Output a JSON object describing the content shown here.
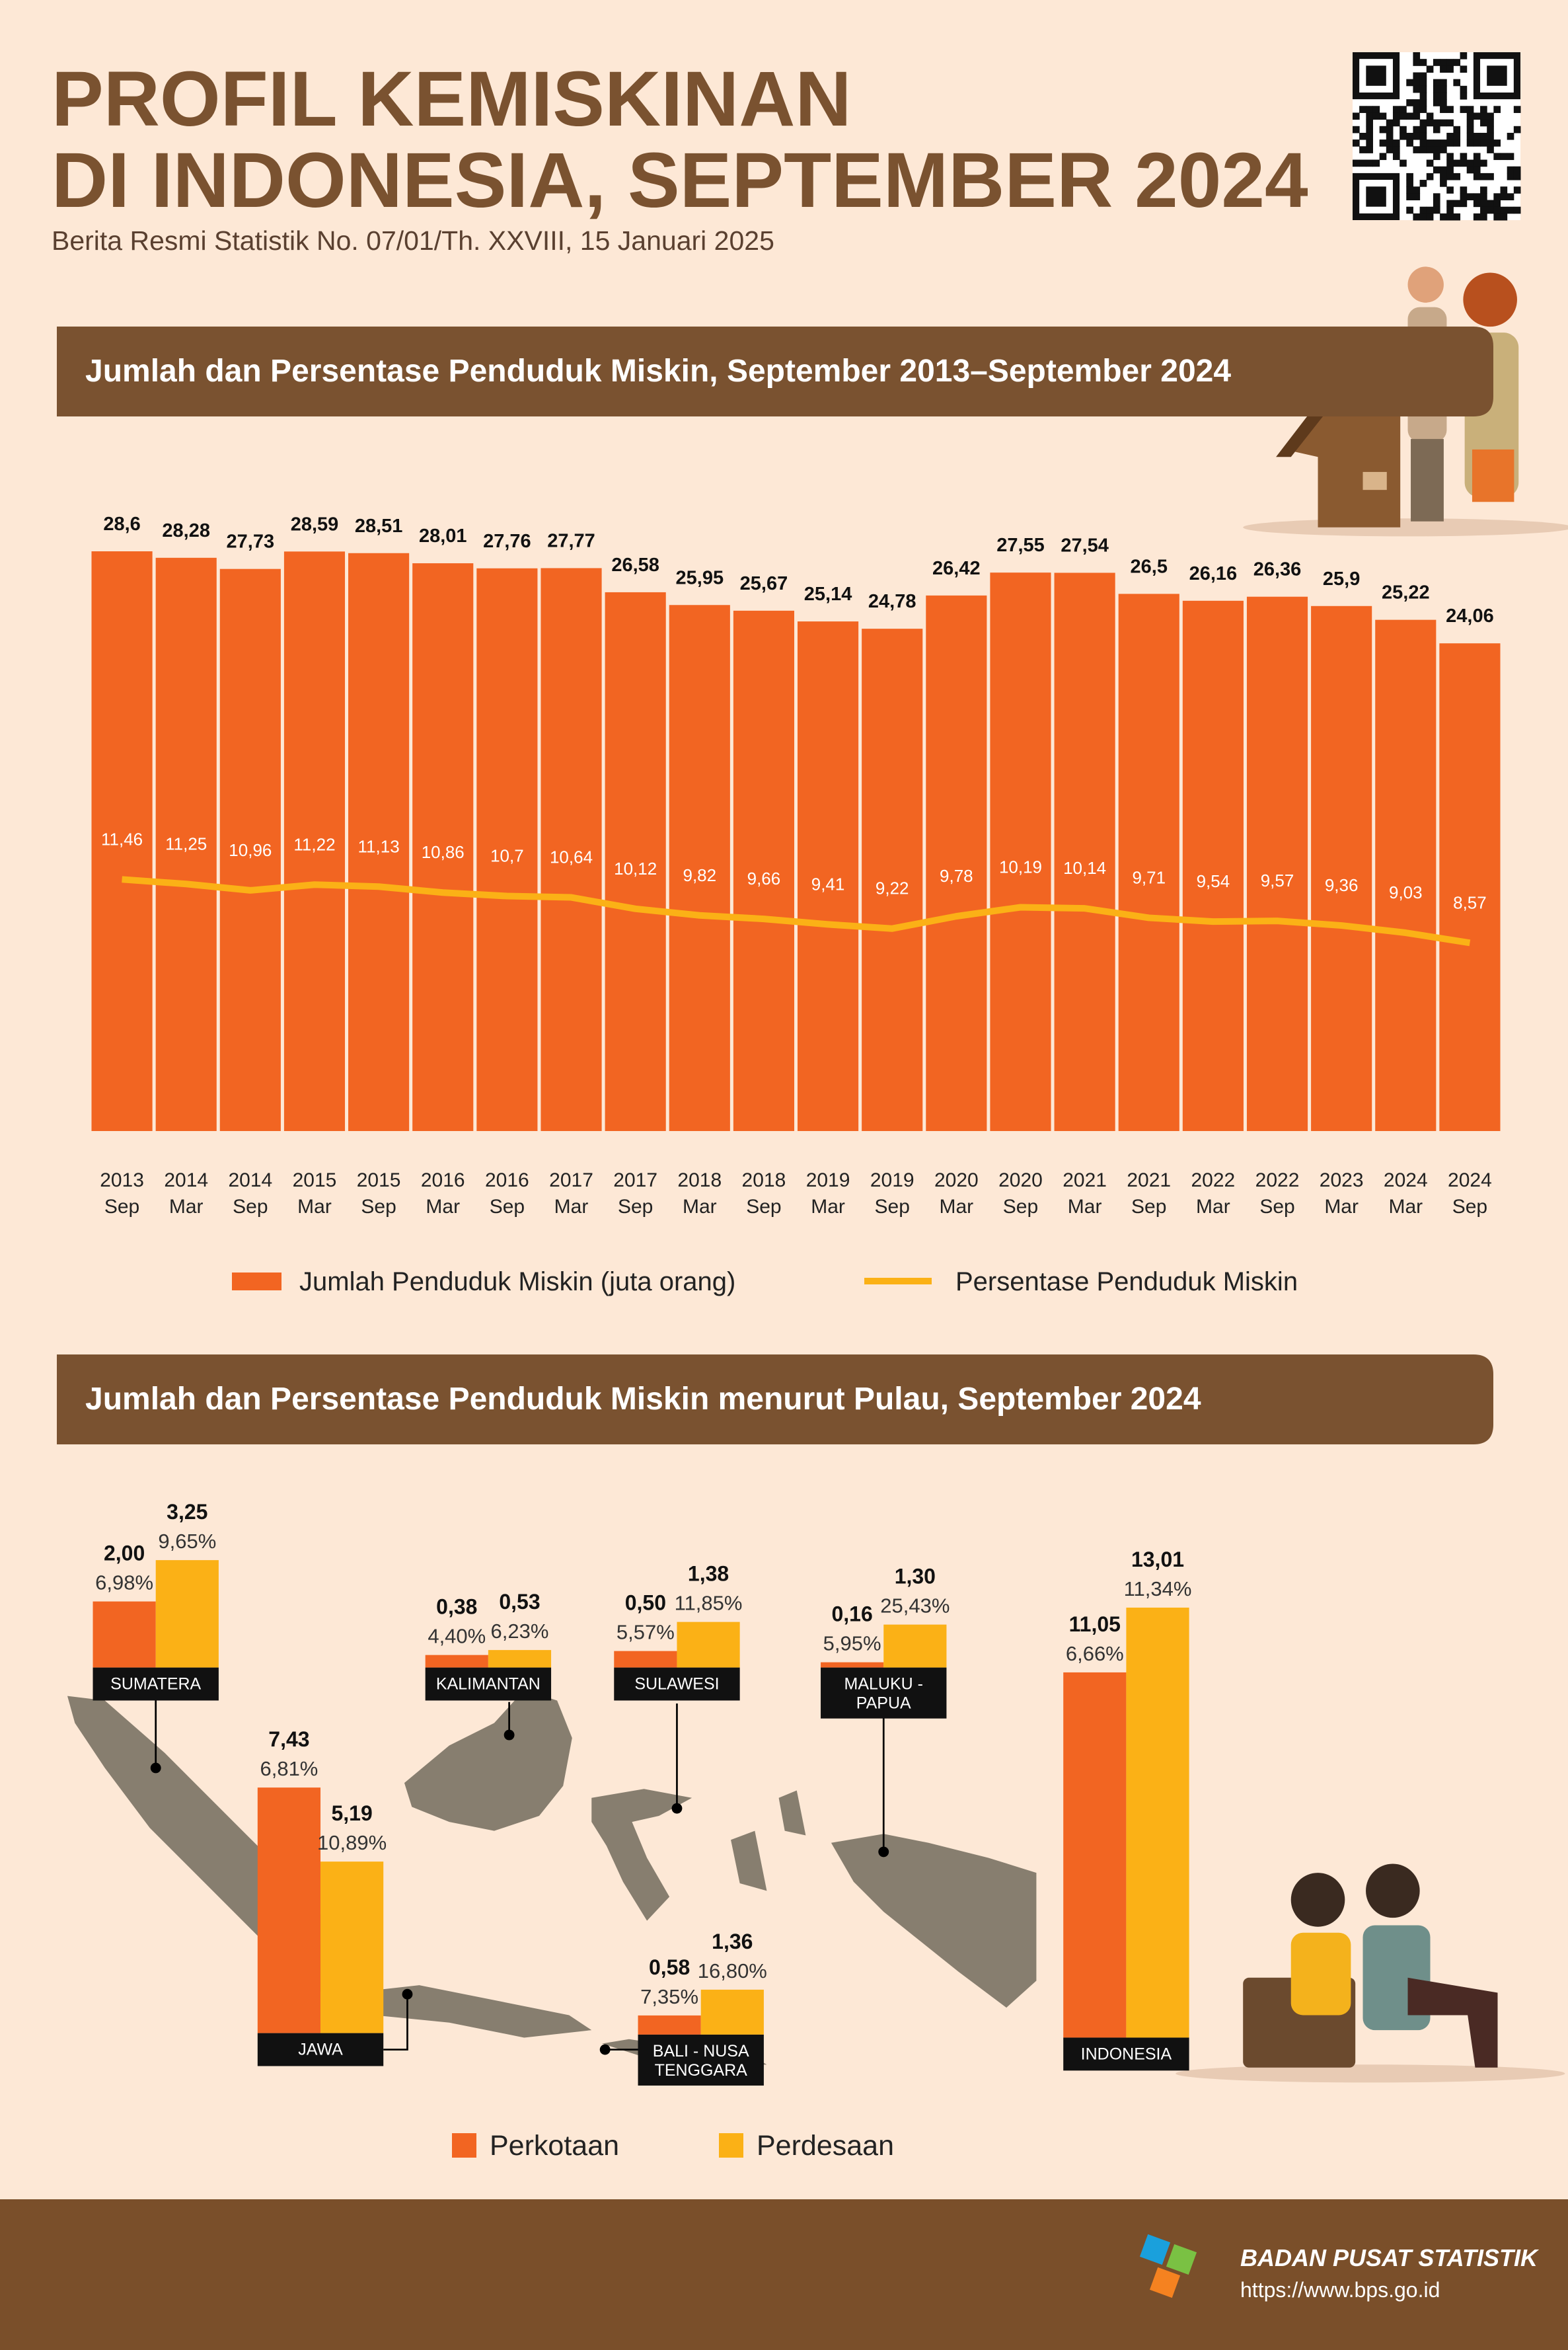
{
  "header": {
    "title_lines": [
      "PROFIL KEMISKINAN",
      "DI INDONESIA, SEPTEMBER 2024"
    ],
    "subtitle": "Berita Resmi Statistik No. 07/01/Th. XXVIII, 15 Januari 2025"
  },
  "chart_data": [
    {
      "type": "bar",
      "title": "Jumlah dan Persentase Penduduk Miskin, September 2013–September 2024",
      "categories": [
        [
          "2013",
          "Sep"
        ],
        [
          "2014",
          "Mar"
        ],
        [
          "2014",
          "Sep"
        ],
        [
          "2015",
          "Mar"
        ],
        [
          "2015",
          "Sep"
        ],
        [
          "2016",
          "Mar"
        ],
        [
          "2016",
          "Sep"
        ],
        [
          "2017",
          "Mar"
        ],
        [
          "2017",
          "Sep"
        ],
        [
          "2018",
          "Mar"
        ],
        [
          "2018",
          "Sep"
        ],
        [
          "2019",
          "Mar"
        ],
        [
          "2019",
          "Sep"
        ],
        [
          "2020",
          "Mar"
        ],
        [
          "2020",
          "Sep"
        ],
        [
          "2021",
          "Mar"
        ],
        [
          "2021",
          "Sep"
        ],
        [
          "2022",
          "Mar"
        ],
        [
          "2022",
          "Sep"
        ],
        [
          "2023",
          "Mar"
        ],
        [
          "2024",
          "Mar"
        ],
        [
          "2024",
          "Sep"
        ]
      ],
      "series": [
        {
          "name": "Jumlah Penduduk Miskin (juta orang)",
          "type": "bar",
          "color": "#f26522",
          "values": [
            28.6,
            28.28,
            27.73,
            28.59,
            28.51,
            28.01,
            27.76,
            27.77,
            26.58,
            25.95,
            25.67,
            25.14,
            24.78,
            26.42,
            27.55,
            27.54,
            26.5,
            26.16,
            26.36,
            25.9,
            25.22,
            24.06
          ],
          "value_labels": [
            "28,6",
            "28,28",
            "27,73",
            "28,59",
            "28,51",
            "28,01",
            "27,76",
            "27,77",
            "26,58",
            "25,95",
            "25,67",
            "25,14",
            "24,78",
            "26,42",
            "27,55",
            "27,54",
            "26,5",
            "26,16",
            "26,36",
            "25,9",
            "25,22",
            "24,06"
          ]
        },
        {
          "name": "Persentase Penduduk Miskin",
          "type": "line",
          "axis": "y2",
          "color": "#fbb116",
          "values": [
            11.46,
            11.25,
            10.96,
            11.22,
            11.13,
            10.86,
            10.7,
            10.64,
            10.12,
            9.82,
            9.66,
            9.41,
            9.22,
            9.78,
            10.19,
            10.14,
            9.71,
            9.54,
            9.57,
            9.36,
            9.03,
            8.57
          ],
          "value_labels": [
            "11,46",
            "11,25",
            "10,96",
            "11,22",
            "11,13",
            "10,86",
            "10,7",
            "10,64",
            "10,12",
            "9,82",
            "9,66",
            "9,41",
            "9,22",
            "9,78",
            "10,19",
            "10,14",
            "9,71",
            "9,54",
            "9,57",
            "9,36",
            "9,03",
            "8,57"
          ]
        }
      ],
      "ylim": [
        0,
        28.6
      ],
      "y2lim": [
        0,
        26.4
      ]
    },
    {
      "type": "bar",
      "title": "Jumlah dan Persentase Penduduk Miskin menurut Pulau, September 2024",
      "categories": [
        [
          "SUMATERA"
        ],
        [
          "KALIMANTAN"
        ],
        [
          "SULAWESI"
        ],
        [
          "MALUKU -",
          "PAPUA"
        ],
        [
          "JAWA"
        ],
        [
          "BALI - NUSA",
          "TENGGARA"
        ],
        [
          "INDONESIA"
        ]
      ],
      "series": [
        {
          "name": "Perkotaan",
          "color": "#f26522",
          "values": [
            2.0,
            0.38,
            0.5,
            0.16,
            7.43,
            0.58,
            11.05
          ],
          "value_labels": [
            "2,00",
            "0,38",
            "0,50",
            "0,16",
            "7,43",
            "0,58",
            "11,05"
          ],
          "percent_labels": [
            "6,98%",
            "4,40%",
            "5,57%",
            "5,95%",
            "6,81%",
            "7,35%",
            "6,66%"
          ]
        },
        {
          "name": "Perdesaan",
          "color": "#fbb116",
          "values": [
            3.25,
            0.53,
            1.38,
            1.3,
            5.19,
            1.36,
            13.01
          ],
          "value_labels": [
            "3,25",
            "0,53",
            "1,38",
            "1,30",
            "5,19",
            "1,36",
            "13,01"
          ],
          "percent_labels": [
            "9,65%",
            "6,23%",
            "11,85%",
            "25,43%",
            "10,89%",
            "16,80%",
            "11,34%"
          ]
        }
      ],
      "ylim": [
        0,
        13
      ]
    }
  ],
  "footer": {
    "organization": "BADAN PUSAT STATISTIK",
    "url": "https://www.bps.go.id"
  }
}
